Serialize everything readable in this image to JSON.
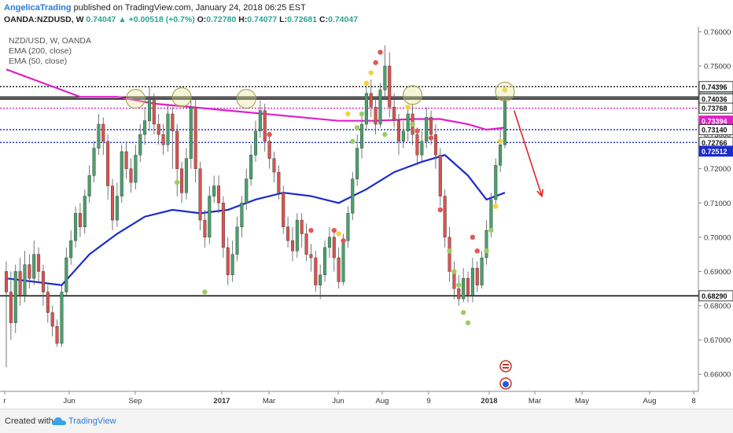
{
  "header": {
    "author": "AngelicaTrading",
    "published_text": "published on TradingView.com, January 24, 2018 06:25 EST",
    "symbol": "OANDA:NZDUSD, W",
    "last_price": "0.74047",
    "change": "+0.00518 (+0.7%)",
    "ohlc": [
      {
        "label": "O:",
        "value": "0.72780"
      },
      {
        "label": "H:",
        "value": "0.74077"
      },
      {
        "label": "L:",
        "value": "0.72681"
      },
      {
        "label": "C:",
        "value": "0.74047"
      }
    ]
  },
  "legend": {
    "pair": "NZD/USD, W, OANDA",
    "ema200": "EMA (200, close)",
    "ema50": "EMA (50, close)"
  },
  "footer": {
    "created_with": "Created with",
    "brand": "TradingView"
  },
  "colors": {
    "bull": "#4aa06c",
    "bear": "#d9534f",
    "ema200": "#e020c8",
    "ema50": "#1a2bd0",
    "forecast": "#e52222",
    "accent": "#2a7bd6"
  },
  "chart_data": {
    "type": "candlestick",
    "y_range": [
      0.655,
      0.761
    ],
    "y_ticks": [
      "0.76000",
      "0.75000",
      "0.74000",
      "0.73000",
      "0.72000",
      "0.71000",
      "0.70000",
      "0.69000",
      "0.68000",
      "0.67000",
      "0.66000"
    ],
    "x_labels": [
      "r",
      "Jun",
      "Sep",
      "2017",
      "Mar",
      "Jun",
      "Aug",
      "9",
      "2018",
      "Mar",
      "May",
      "Aug",
      "8"
    ],
    "horizontal_levels": [
      {
        "value": 0.74396,
        "label": "0.74396",
        "style": "dotted-black"
      },
      {
        "value": 0.7409,
        "label": "0.74090",
        "style": "solid-black"
      },
      {
        "value": 0.74047,
        "label": "0.74047",
        "style": "last-price"
      },
      {
        "value": 0.74036,
        "label": "0.74036",
        "style": "solid-black"
      },
      {
        "value": 0.73768,
        "label": "0.73768",
        "style": "dotted-magenta"
      },
      {
        "value": 0.73394,
        "label": "0.73394",
        "style": "ema200"
      },
      {
        "value": 0.7314,
        "label": "0.73140",
        "style": "dotted-blue"
      },
      {
        "value": 0.72766,
        "label": "0.72766",
        "style": "dotted-blue"
      },
      {
        "value": 0.72512,
        "label": "0.72512",
        "style": "ema50"
      },
      {
        "value": 0.6829,
        "label": "0.68290",
        "style": "solid-black"
      }
    ],
    "candles": [
      [
        0.69,
        0.684,
        0.693,
        0.662
      ],
      [
        0.684,
        0.675,
        0.69,
        0.67
      ],
      [
        0.675,
        0.69,
        0.692,
        0.672
      ],
      [
        0.69,
        0.683,
        0.694,
        0.68
      ],
      [
        0.683,
        0.692,
        0.696,
        0.681
      ],
      [
        0.692,
        0.688,
        0.695,
        0.685
      ],
      [
        0.688,
        0.695,
        0.699,
        0.686
      ],
      [
        0.695,
        0.69,
        0.697,
        0.687
      ],
      [
        0.69,
        0.684,
        0.692,
        0.68
      ],
      [
        0.684,
        0.678,
        0.686,
        0.675
      ],
      [
        0.678,
        0.674,
        0.68,
        0.671
      ],
      [
        0.674,
        0.669,
        0.676,
        0.668
      ],
      [
        0.669,
        0.684,
        0.686,
        0.668
      ],
      [
        0.684,
        0.694,
        0.697,
        0.683
      ],
      [
        0.694,
        0.699,
        0.702,
        0.692
      ],
      [
        0.699,
        0.707,
        0.709,
        0.697
      ],
      [
        0.707,
        0.703,
        0.71,
        0.7
      ],
      [
        0.703,
        0.712,
        0.714,
        0.701
      ],
      [
        0.712,
        0.718,
        0.721,
        0.71
      ],
      [
        0.718,
        0.726,
        0.728,
        0.716
      ],
      [
        0.726,
        0.733,
        0.736,
        0.724
      ],
      [
        0.733,
        0.728,
        0.735,
        0.724
      ],
      [
        0.728,
        0.715,
        0.73,
        0.711
      ],
      [
        0.715,
        0.705,
        0.717,
        0.702
      ],
      [
        0.705,
        0.712,
        0.716,
        0.703
      ],
      [
        0.712,
        0.725,
        0.727,
        0.71
      ],
      [
        0.725,
        0.72,
        0.728,
        0.717
      ],
      [
        0.72,
        0.716,
        0.723,
        0.713
      ],
      [
        0.716,
        0.724,
        0.727,
        0.714
      ],
      [
        0.724,
        0.73,
        0.733,
        0.722
      ],
      [
        0.73,
        0.734,
        0.738,
        0.727
      ],
      [
        0.734,
        0.74,
        0.744,
        0.731
      ],
      [
        0.74,
        0.733,
        0.742,
        0.73
      ],
      [
        0.733,
        0.73,
        0.736,
        0.727
      ],
      [
        0.73,
        0.727,
        0.733,
        0.724
      ],
      [
        0.727,
        0.736,
        0.739,
        0.725
      ],
      [
        0.736,
        0.731,
        0.738,
        0.72
      ],
      [
        0.731,
        0.72,
        0.733,
        0.712
      ],
      [
        0.72,
        0.713,
        0.722,
        0.71
      ],
      [
        0.713,
        0.723,
        0.726,
        0.711
      ],
      [
        0.723,
        0.738,
        0.74,
        0.72
      ],
      [
        0.738,
        0.72,
        0.741,
        0.716
      ],
      [
        0.72,
        0.705,
        0.722,
        0.702
      ],
      [
        0.705,
        0.7,
        0.708,
        0.697
      ],
      [
        0.7,
        0.712,
        0.715,
        0.698
      ],
      [
        0.712,
        0.715,
        0.718,
        0.71
      ],
      [
        0.715,
        0.71,
        0.718,
        0.707
      ],
      [
        0.71,
        0.697,
        0.712,
        0.694
      ],
      [
        0.697,
        0.689,
        0.7,
        0.686
      ],
      [
        0.689,
        0.695,
        0.699,
        0.687
      ],
      [
        0.695,
        0.703,
        0.706,
        0.693
      ],
      [
        0.703,
        0.71,
        0.712,
        0.7
      ],
      [
        0.71,
        0.717,
        0.72,
        0.708
      ],
      [
        0.717,
        0.724,
        0.727,
        0.715
      ],
      [
        0.724,
        0.731,
        0.734,
        0.722
      ],
      [
        0.731,
        0.737,
        0.74,
        0.729
      ],
      [
        0.737,
        0.728,
        0.739,
        0.725
      ],
      [
        0.728,
        0.723,
        0.73,
        0.72
      ],
      [
        0.723,
        0.719,
        0.725,
        0.716
      ],
      [
        0.719,
        0.713,
        0.721,
        0.711
      ],
      [
        0.713,
        0.703,
        0.715,
        0.701
      ],
      [
        0.703,
        0.699,
        0.706,
        0.697
      ],
      [
        0.699,
        0.696,
        0.703,
        0.693
      ],
      [
        0.696,
        0.705,
        0.707,
        0.694
      ],
      [
        0.705,
        0.701,
        0.707,
        0.697
      ],
      [
        0.701,
        0.695,
        0.704,
        0.693
      ],
      [
        0.695,
        0.694,
        0.698,
        0.69
      ],
      [
        0.694,
        0.686,
        0.696,
        0.684
      ],
      [
        0.686,
        0.689,
        0.692,
        0.682
      ],
      [
        0.689,
        0.697,
        0.699,
        0.687
      ],
      [
        0.697,
        0.7,
        0.703,
        0.694
      ],
      [
        0.7,
        0.694,
        0.702,
        0.69
      ],
      [
        0.694,
        0.687,
        0.697,
        0.685
      ],
      [
        0.687,
        0.699,
        0.701,
        0.686
      ],
      [
        0.699,
        0.707,
        0.709,
        0.697
      ],
      [
        0.707,
        0.717,
        0.719,
        0.705
      ],
      [
        0.717,
        0.726,
        0.73,
        0.715
      ],
      [
        0.726,
        0.733,
        0.736,
        0.723
      ],
      [
        0.733,
        0.742,
        0.745,
        0.731
      ],
      [
        0.742,
        0.738,
        0.746,
        0.735
      ],
      [
        0.738,
        0.733,
        0.741,
        0.73
      ],
      [
        0.733,
        0.743,
        0.745,
        0.732
      ],
      [
        0.743,
        0.75,
        0.756,
        0.741
      ],
      [
        0.75,
        0.738,
        0.754,
        0.735
      ],
      [
        0.738,
        0.734,
        0.742,
        0.732
      ],
      [
        0.734,
        0.728,
        0.736,
        0.724
      ],
      [
        0.728,
        0.731,
        0.734,
        0.726
      ],
      [
        0.731,
        0.736,
        0.738,
        0.728
      ],
      [
        0.736,
        0.73,
        0.739,
        0.727
      ],
      [
        0.73,
        0.724,
        0.732,
        0.721
      ],
      [
        0.724,
        0.728,
        0.731,
        0.722
      ],
      [
        0.728,
        0.735,
        0.738,
        0.726
      ],
      [
        0.735,
        0.73,
        0.737,
        0.727
      ],
      [
        0.73,
        0.724,
        0.733,
        0.72
      ],
      [
        0.724,
        0.712,
        0.726,
        0.709
      ],
      [
        0.712,
        0.7,
        0.714,
        0.697
      ],
      [
        0.7,
        0.69,
        0.703,
        0.687
      ],
      [
        0.69,
        0.685,
        0.693,
        0.682
      ],
      [
        0.685,
        0.682,
        0.689,
        0.68
      ],
      [
        0.682,
        0.688,
        0.691,
        0.681
      ],
      [
        0.688,
        0.683,
        0.69,
        0.681
      ],
      [
        0.683,
        0.691,
        0.694,
        0.681
      ],
      [
        0.691,
        0.686,
        0.693,
        0.684
      ],
      [
        0.686,
        0.694,
        0.696,
        0.685
      ],
      [
        0.694,
        0.702,
        0.705,
        0.692
      ],
      [
        0.702,
        0.711,
        0.713,
        0.7
      ],
      [
        0.711,
        0.721,
        0.723,
        0.709
      ],
      [
        0.721,
        0.727,
        0.731,
        0.719
      ],
      [
        0.727,
        0.74,
        0.741,
        0.726
      ]
    ],
    "ema50_points": [
      [
        0,
        0.688
      ],
      [
        6,
        0.687
      ],
      [
        12,
        0.686
      ],
      [
        18,
        0.695
      ],
      [
        24,
        0.701
      ],
      [
        30,
        0.706
      ],
      [
        36,
        0.708
      ],
      [
        42,
        0.707
      ],
      [
        48,
        0.708
      ],
      [
        54,
        0.711
      ],
      [
        60,
        0.713
      ],
      [
        66,
        0.712
      ],
      [
        72,
        0.71
      ],
      [
        78,
        0.714
      ],
      [
        84,
        0.719
      ],
      [
        90,
        0.722
      ],
      [
        95,
        0.724
      ],
      [
        100,
        0.718
      ],
      [
        104,
        0.711
      ],
      [
        108,
        0.713
      ]
    ],
    "ema200_points": [
      [
        0,
        0.749
      ],
      [
        8,
        0.745
      ],
      [
        16,
        0.741
      ],
      [
        24,
        0.741
      ],
      [
        32,
        0.739
      ],
      [
        40,
        0.738
      ],
      [
        48,
        0.737
      ],
      [
        56,
        0.736
      ],
      [
        64,
        0.735
      ],
      [
        72,
        0.734
      ],
      [
        80,
        0.734
      ],
      [
        88,
        0.7345
      ],
      [
        94,
        0.7345
      ],
      [
        100,
        0.733
      ],
      [
        104,
        0.7314
      ],
      [
        108,
        0.732
      ]
    ],
    "circle_marks": [
      [
        28,
        0.7404
      ],
      [
        38,
        0.7409
      ],
      [
        52,
        0.7404
      ],
      [
        88,
        0.7415
      ],
      [
        108,
        0.7425
      ]
    ],
    "forecast_arrow": [
      [
        110,
        0.737
      ],
      [
        116,
        0.712
      ]
    ],
    "dots": [
      {
        "i": 75,
        "v": 0.728,
        "c": "green"
      },
      {
        "i": 76,
        "v": 0.732,
        "c": "green"
      },
      {
        "i": 77,
        "v": 0.736,
        "c": "green"
      },
      {
        "i": 78,
        "v": 0.745,
        "c": "yellow"
      },
      {
        "i": 79,
        "v": 0.748,
        "c": "yellow"
      },
      {
        "i": 80,
        "v": 0.751,
        "c": "red"
      },
      {
        "i": 81,
        "v": 0.754,
        "c": "red"
      },
      {
        "i": 82,
        "v": 0.73,
        "c": "green"
      },
      {
        "i": 71,
        "v": 0.702,
        "c": "red"
      },
      {
        "i": 72,
        "v": 0.701,
        "c": "yellow"
      },
      {
        "i": 73,
        "v": 0.699,
        "c": "red"
      },
      {
        "i": 74,
        "v": 0.736,
        "c": "yellow"
      },
      {
        "i": 87,
        "v": 0.738,
        "c": "yellow"
      },
      {
        "i": 88,
        "v": 0.733,
        "c": "green"
      },
      {
        "i": 89,
        "v": 0.731,
        "c": "red"
      },
      {
        "i": 92,
        "v": 0.729,
        "c": "red"
      },
      {
        "i": 94,
        "v": 0.708,
        "c": "red"
      },
      {
        "i": 96,
        "v": 0.696,
        "c": "green"
      },
      {
        "i": 97,
        "v": 0.69,
        "c": "green"
      },
      {
        "i": 98,
        "v": 0.686,
        "c": "green"
      },
      {
        "i": 99,
        "v": 0.678,
        "c": "green"
      },
      {
        "i": 100,
        "v": 0.675,
        "c": "green"
      },
      {
        "i": 101,
        "v": 0.7,
        "c": "red"
      },
      {
        "i": 102,
        "v": 0.696,
        "c": "red"
      },
      {
        "i": 104,
        "v": 0.696,
        "c": "green"
      },
      {
        "i": 105,
        "v": 0.702,
        "c": "green"
      },
      {
        "i": 106,
        "v": 0.709,
        "c": "yellow"
      },
      {
        "i": 107,
        "v": 0.728,
        "c": "yellow"
      },
      {
        "i": 108,
        "v": 0.743,
        "c": "yellow"
      },
      {
        "i": 37,
        "v": 0.716,
        "c": "green"
      },
      {
        "i": 43,
        "v": 0.684,
        "c": "green"
      },
      {
        "i": 57,
        "v": 0.73,
        "c": "red"
      },
      {
        "i": 66,
        "v": 0.702,
        "c": "red"
      }
    ]
  }
}
